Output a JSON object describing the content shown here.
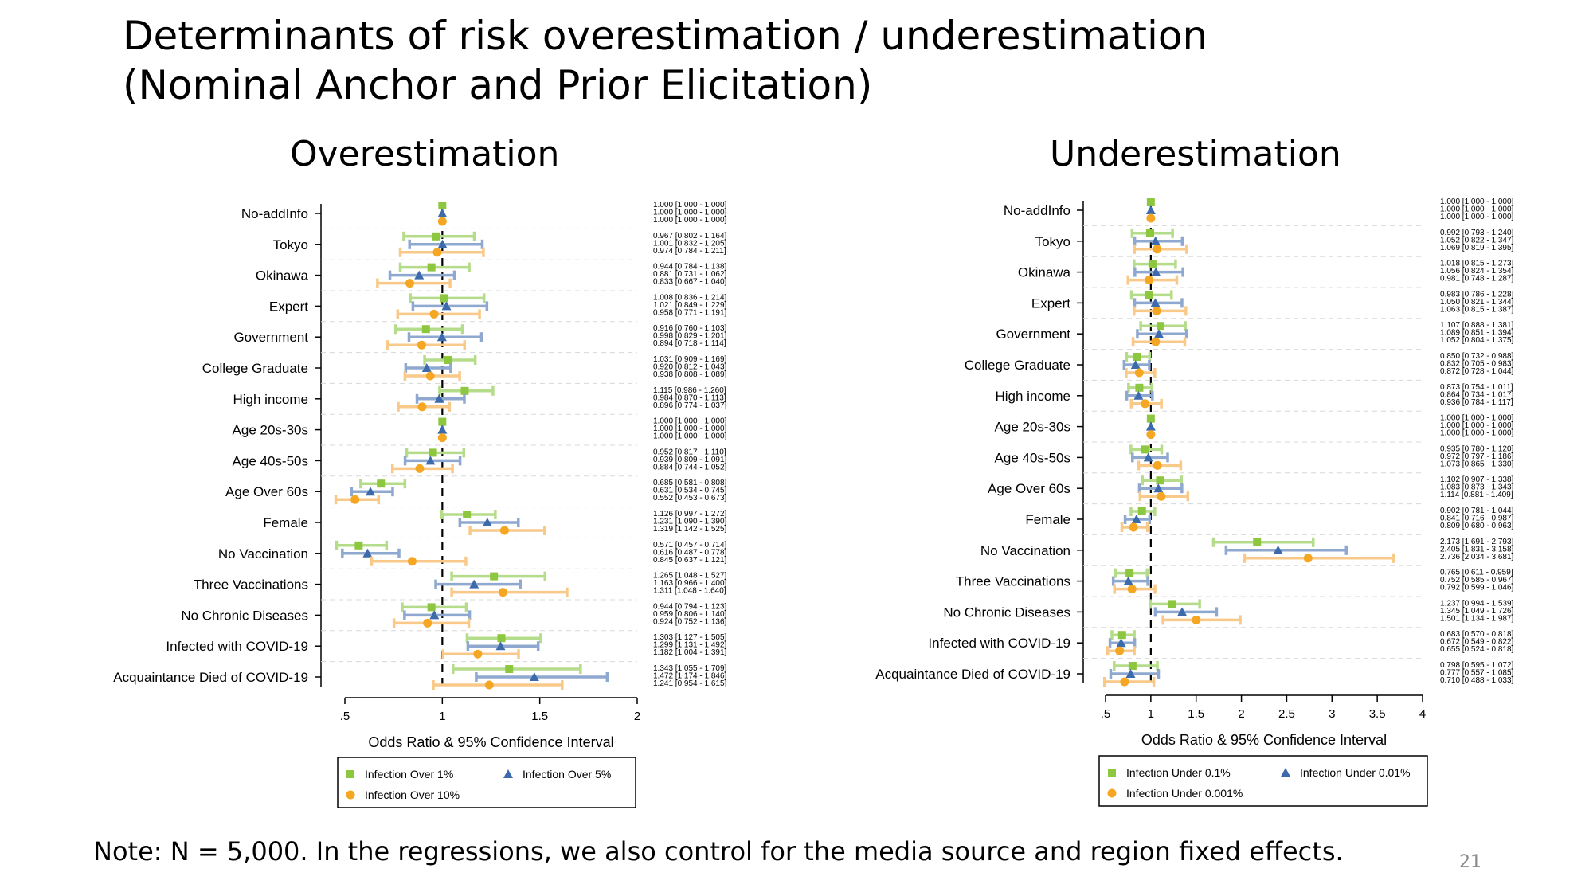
{
  "slide": {
    "title_line1": "Determinants of risk overestimation / underestimation",
    "title_line2": "(Nominal Anchor and Prior Elicitation)",
    "note": "Note: N = 5,000. In the regressions, we also control for the media source and region fixed effects.",
    "page_number": "21"
  },
  "colors": {
    "series1": "#8dc63f",
    "series2": "#3d6aaa",
    "series3": "#f5a623",
    "ci1": "#b5dc8a",
    "ci2": "#8fa8cf",
    "ci3": "#f9c98a"
  },
  "chart_data": [
    {
      "type": "forest",
      "title": "Overestimation",
      "xlabel": "Odds Ratio & 95% Confidence Interval",
      "xlim": [
        0.5,
        2
      ],
      "xticks": [
        0.5,
        1,
        1.5,
        2
      ],
      "xtick_labels": [
        ".5",
        "1",
        "1.5",
        "2"
      ],
      "reference_line": 1,
      "categories": [
        "No-addInfo",
        "Tokyo",
        "Okinawa",
        "Expert",
        "Government",
        "College Graduate",
        "High income",
        "Age 20s-30s",
        "Age 40s-50s",
        "Age Over 60s",
        "Female",
        "No Vaccination",
        "Three Vaccinations",
        "No Chronic Diseases",
        "Infected with COVID-19",
        "Acquaintance Died of COVID-19"
      ],
      "series": [
        {
          "name": "Infection Over 1%",
          "marker": "square",
          "values": [
            1.0,
            0.967,
            0.944,
            1.008,
            0.916,
            1.031,
            1.115,
            1.0,
            0.952,
            0.685,
            1.126,
            0.571,
            1.265,
            0.944,
            1.303,
            1.343
          ],
          "lower": [
            1.0,
            0.802,
            0.784,
            0.836,
            0.76,
            0.909,
            0.986,
            1.0,
            0.817,
            0.581,
            0.997,
            0.457,
            1.048,
            0.794,
            1.127,
            1.055
          ],
          "upper": [
            1.0,
            1.164,
            1.138,
            1.214,
            1.103,
            1.169,
            1.26,
            1.0,
            1.11,
            0.808,
            1.272,
            0.714,
            1.527,
            1.123,
            1.505,
            1.709
          ]
        },
        {
          "name": "Infection Over 5%",
          "marker": "triangle",
          "values": [
            1.0,
            1.001,
            0.881,
            1.021,
            0.998,
            0.92,
            0.984,
            1.0,
            0.939,
            0.631,
            1.231,
            0.616,
            1.163,
            0.959,
            1.299,
            1.472
          ],
          "lower": [
            1.0,
            0.832,
            0.731,
            0.849,
            0.829,
            0.812,
            0.87,
            1.0,
            0.809,
            0.534,
            1.09,
            0.487,
            0.966,
            0.806,
            1.131,
            1.174
          ],
          "upper": [
            1.0,
            1.205,
            1.062,
            1.229,
            1.201,
            1.043,
            1.113,
            1.0,
            1.091,
            0.745,
            1.39,
            0.778,
            1.4,
            1.14,
            1.492,
            1.846
          ]
        },
        {
          "name": "Infection Over 10%",
          "marker": "circle",
          "values": [
            1.0,
            0.974,
            0.833,
            0.958,
            0.894,
            0.938,
            0.896,
            1.0,
            0.884,
            0.552,
            1.319,
            0.845,
            1.311,
            0.924,
            1.182,
            1.241
          ],
          "lower": [
            1.0,
            0.784,
            0.667,
            0.771,
            0.718,
            0.808,
            0.774,
            1.0,
            0.744,
            0.453,
            1.142,
            0.637,
            1.048,
            0.752,
            1.004,
            0.954
          ],
          "upper": [
            1.0,
            1.211,
            1.04,
            1.191,
            1.114,
            1.089,
            1.037,
            1.0,
            1.052,
            0.673,
            1.525,
            1.121,
            1.64,
            1.136,
            1.391,
            1.615
          ]
        }
      ],
      "value_labels": [
        [
          "1.000 [1.000 - 1.000]",
          "1.000 [1.000 - 1.000]",
          "1.000 [1.000 - 1.000]"
        ],
        [
          "0.967 [0.802 - 1.164]",
          "1.001 [0.832 - 1.205]",
          "0.974 [0.784 - 1.211]"
        ],
        [
          "0.944 [0.784 - 1.138]",
          "0.881 [0.731 - 1.062]",
          "0.833 [0.667 - 1.040]"
        ],
        [
          "1.008 [0.836 - 1.214]",
          "1.021 [0.849 - 1.229]",
          "0.958 [0.771 - 1.191]"
        ],
        [
          "0.916 [0.760 - 1.103]",
          "0.998 [0.829 - 1.201]",
          "0.894 [0.718 - 1.114]"
        ],
        [
          "1.031 [0.909 - 1.169]",
          "0.920 [0.812 - 1.043]",
          "0.938 [0.808 - 1.089]"
        ],
        [
          "1.115 [0.986 - 1.260]",
          "0.984 [0.870 - 1.113]",
          "0.896 [0.774 - 1.037]"
        ],
        [
          "1.000 [1.000 - 1.000]",
          "1.000 [1.000 - 1.000]",
          "1.000 [1.000 - 1.000]"
        ],
        [
          "0.952 [0.817 - 1.110]",
          "0.939 [0.809 - 1.091]",
          "0.884 [0.744 - 1.052]"
        ],
        [
          "0.685 [0.581 - 0.808]",
          "0.631 [0.534 - 0.745]",
          "0.552 [0.453 - 0.673]"
        ],
        [
          "1.126 [0.997 - 1.272]",
          "1.231 [1.090 - 1.390]",
          "1.319 [1.142 - 1.525]"
        ],
        [
          "0.571 [0.457 - 0.714]",
          "0.616 [0.487 - 0.778]",
          "0.845 [0.637 - 1.121]"
        ],
        [
          "1.265 [1.048 - 1.527]",
          "1.163 [0.966 - 1.400]",
          "1.311 [1.048 - 1.640]"
        ],
        [
          "0.944 [0.794 - 1.123]",
          "0.959 [0.806 - 1.140]",
          "0.924 [0.752 - 1.136]"
        ],
        [
          "1.303 [1.127 - 1.505]",
          "1.299 [1.131 - 1.492]",
          "1.182 [1.004 - 1.391]"
        ],
        [
          "1.343 [1.055 - 1.709]",
          "1.472 [1.174 - 1.846]",
          "1.241 [0.954 - 1.615]"
        ]
      ],
      "legend_position": "bottom"
    },
    {
      "type": "forest",
      "title": "Underestimation",
      "xlabel": "Odds Ratio & 95% Confidence Interval",
      "xlim": [
        0.5,
        4
      ],
      "xticks": [
        0.5,
        1,
        1.5,
        2,
        2.5,
        3,
        3.5,
        4
      ],
      "xtick_labels": [
        ".5",
        "1",
        "1.5",
        "2",
        "2.5",
        "3",
        "3.5",
        "4"
      ],
      "reference_line": 1,
      "categories": [
        "No-addInfo",
        "Tokyo",
        "Okinawa",
        "Expert",
        "Government",
        "College Graduate",
        "High income",
        "Age 20s-30s",
        "Age 40s-50s",
        "Age Over 60s",
        "Female",
        "No Vaccination",
        "Three Vaccinations",
        "No Chronic Diseases",
        "Infected with COVID-19",
        "Acquaintance Died of COVID-19"
      ],
      "series": [
        {
          "name": "Infection Under 0.1%",
          "marker": "square",
          "values": [
            1.0,
            0.992,
            1.018,
            0.983,
            1.107,
            0.85,
            0.873,
            1.0,
            0.935,
            1.102,
            0.902,
            2.173,
            0.765,
            1.237,
            0.683,
            0.798
          ],
          "lower": [
            1.0,
            0.793,
            0.815,
            0.786,
            0.888,
            0.732,
            0.754,
            1.0,
            0.78,
            0.907,
            0.781,
            1.691,
            0.611,
            0.994,
            0.57,
            0.595
          ],
          "upper": [
            1.0,
            1.24,
            1.273,
            1.228,
            1.381,
            0.988,
            1.011,
            1.0,
            1.12,
            1.338,
            1.044,
            2.793,
            0.959,
            1.539,
            0.818,
            1.072
          ]
        },
        {
          "name": "Infection Under 0.01%",
          "marker": "triangle",
          "values": [
            1.0,
            1.052,
            1.056,
            1.05,
            1.089,
            0.832,
            0.864,
            1.0,
            0.972,
            1.083,
            0.841,
            2.405,
            0.752,
            1.345,
            0.672,
            0.777
          ],
          "lower": [
            1.0,
            0.822,
            0.824,
            0.821,
            0.851,
            0.705,
            0.734,
            1.0,
            0.797,
            0.873,
            0.716,
            1.831,
            0.585,
            1.049,
            0.549,
            0.557
          ],
          "upper": [
            1.0,
            1.347,
            1.354,
            1.344,
            1.394,
            0.983,
            1.017,
            1.0,
            1.186,
            1.343,
            0.987,
            3.158,
            0.967,
            1.726,
            0.822,
            1.085
          ]
        },
        {
          "name": "Infection Under 0.001%",
          "marker": "circle",
          "values": [
            1.0,
            1.069,
            0.981,
            1.063,
            1.052,
            0.872,
            0.936,
            1.0,
            1.073,
            1.114,
            0.809,
            2.736,
            0.792,
            1.501,
            0.655,
            0.71
          ],
          "lower": [
            1.0,
            0.819,
            0.748,
            0.815,
            0.804,
            0.728,
            0.784,
            1.0,
            0.865,
            0.881,
            0.68,
            2.034,
            0.599,
            1.134,
            0.524,
            0.488
          ],
          "upper": [
            1.0,
            1.395,
            1.287,
            1.387,
            1.375,
            1.044,
            1.117,
            1.0,
            1.33,
            1.409,
            0.963,
            3.681,
            1.046,
            1.987,
            0.818,
            1.033
          ]
        }
      ],
      "value_labels": [
        [
          "1.000 [1.000 - 1.000]",
          "1.000 [1.000 - 1.000]",
          "1.000 [1.000 - 1.000]"
        ],
        [
          "0.992 [0.793 - 1.240]",
          "1.052 [0.822 - 1.347]",
          "1.069 [0.819 - 1.395]"
        ],
        [
          "1.018 [0.815 - 1.273]",
          "1.056 [0.824 - 1.354]",
          "0.981 [0.748 - 1.287]"
        ],
        [
          "0.983 [0.786 - 1.228]",
          "1.050 [0.821 - 1.344]",
          "1.063 [0.815 - 1.387]"
        ],
        [
          "1.107 [0.888 - 1.381]",
          "1.089 [0.851 - 1.394]",
          "1.052 [0.804 - 1.375]"
        ],
        [
          "0.850 [0.732 - 0.988]",
          "0.832 [0.705 - 0.983]",
          "0.872 [0.728 - 1.044]"
        ],
        [
          "0.873 [0.754 - 1.011]",
          "0.864 [0.734 - 1.017]",
          "0.936 [0.784 - 1.117]"
        ],
        [
          "1.000 [1.000 - 1.000]",
          "1.000 [1.000 - 1.000]",
          "1.000 [1.000 - 1.000]"
        ],
        [
          "0.935 [0.780 - 1.120]",
          "0.972 [0.797 - 1.186]",
          "1.073 [0.865 - 1.330]"
        ],
        [
          "1.102 [0.907 - 1.338]",
          "1.083 [0.873 - 1.343]",
          "1.114 [0.881 - 1.409]"
        ],
        [
          "0.902 [0.781 - 1.044]",
          "0.841 [0.716 - 0.987]",
          "0.809 [0.680 - 0.963]"
        ],
        [
          "2.173 [1.691 - 2.793]",
          "2.405 [1.831 - 3.158]",
          "2.736 [2.034 - 3.681]"
        ],
        [
          "0.765 [0.611 - 0.959]",
          "0.752 [0.585 - 0.967]",
          "0.792 [0.599 - 1.046]"
        ],
        [
          "1.237 [0.994 - 1.539]",
          "1.345 [1.049 - 1.726]",
          "1.501 [1.134 - 1.987]"
        ],
        [
          "0.683 [0.570 - 0.818]",
          "0.672 [0.549 - 0.822]",
          "0.655 [0.524 - 0.818]"
        ],
        [
          "0.798 [0.595 - 1.072]",
          "0.777 [0.557 - 1.085]",
          "0.710 [0.488 - 1.033]"
        ]
      ],
      "legend_position": "bottom"
    }
  ]
}
